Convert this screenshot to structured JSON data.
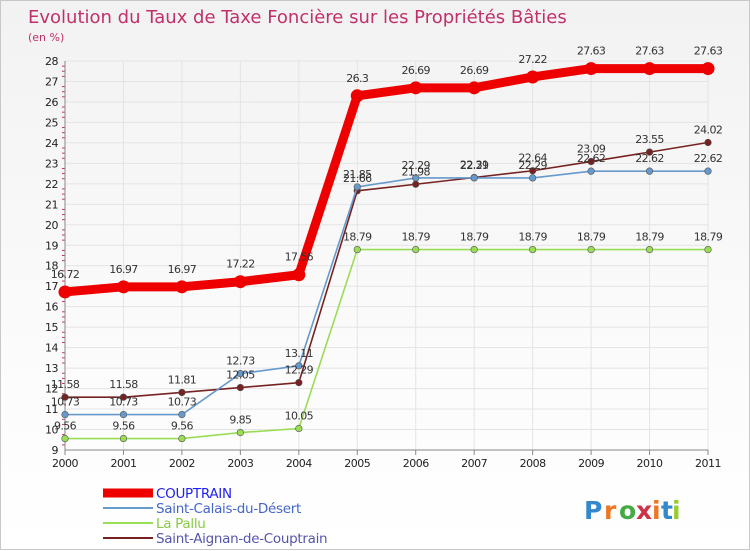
{
  "chart_data": {
    "type": "line",
    "title": "Evolution du Taux de Taxe Foncière sur les Propriétés Bâties",
    "subtitle": "(en %)",
    "x": [
      "2000",
      "2001",
      "2002",
      "2003",
      "2004",
      "2005",
      "2006",
      "2007",
      "2008",
      "2009",
      "2010",
      "2011"
    ],
    "ylim": [
      9,
      28
    ],
    "yticks": [
      9,
      10,
      11,
      12,
      13,
      14,
      15,
      16,
      17,
      18,
      19,
      20,
      21,
      22,
      23,
      24,
      25,
      26,
      27,
      28
    ],
    "grid": true,
    "series": [
      {
        "name": "COUPTRAIN",
        "color": "#ee0000",
        "values": [
          16.72,
          16.97,
          16.97,
          17.22,
          17.56,
          26.3,
          26.69,
          26.69,
          27.22,
          27.63,
          27.63,
          27.63
        ],
        "labels": [
          "16.72",
          "16.97",
          "16.97",
          "17.22",
          "17.56",
          "26.3",
          "26.69",
          "26.69",
          "27.22",
          "27.63",
          "27.63",
          "27.63"
        ]
      },
      {
        "name": "Saint-Calais-du-Désert",
        "color": "#6699cc",
        "values": [
          10.73,
          10.73,
          10.73,
          12.73,
          13.11,
          21.85,
          22.29,
          22.29,
          22.29,
          22.62,
          22.62,
          22.62
        ],
        "labels": [
          "10.73",
          "10.73",
          "10.73",
          "12.73",
          "13.11",
          "21.85",
          "22.29",
          "22.29",
          "22.29",
          "22.62",
          "22.62",
          "22.62"
        ]
      },
      {
        "name": "La Pallu",
        "color": "#99dd55",
        "values": [
          9.56,
          9.56,
          9.56,
          9.85,
          10.05,
          18.79,
          18.79,
          18.79,
          18.79,
          18.79,
          18.79,
          18.79
        ],
        "labels": [
          "9.56",
          "9.56",
          "9.56",
          "9.85",
          "10.05",
          "18.79",
          "18.79",
          "18.79",
          "18.79",
          "18.79",
          "18.79",
          "18.79"
        ]
      },
      {
        "name": "Saint-Aignan-de-Couptrain",
        "color": "#772222",
        "values": [
          11.58,
          11.58,
          11.81,
          12.05,
          12.29,
          21.66,
          21.98,
          22.31,
          22.64,
          23.09,
          23.55,
          24.02
        ],
        "labels": [
          "11.58",
          "11.58",
          "11.81",
          "12.05",
          "12.29",
          "21.66",
          "21.98",
          "22.31",
          "22.64",
          "23.09",
          "23.55",
          "24.02"
        ]
      }
    ]
  },
  "legend_colors": [
    "#2222ee",
    "#4466cc",
    "#88cc44",
    "#5555aa"
  ],
  "logo": {
    "text": "Proxiti",
    "colors": [
      "#3388cc",
      "#ee7722",
      "#44aa44",
      "#cc3344",
      "#ee7722",
      "#3388cc",
      "#99cc33"
    ]
  }
}
